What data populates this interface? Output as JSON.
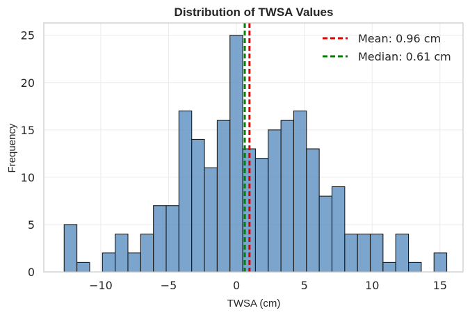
{
  "chart_data": {
    "type": "bar",
    "title": "Distribution of TWSA Values",
    "xlabel": "TWSA (cm)",
    "ylabel": "Frequency",
    "xlim": [
      -14.2,
      16.7
    ],
    "ylim": [
      0,
      26.3
    ],
    "grid": true,
    "legend_position": "top-right",
    "bin_start": -12.7,
    "bin_width": 0.94,
    "values": [
      5,
      1,
      0,
      2,
      4,
      2,
      4,
      7,
      7,
      17,
      14,
      11,
      16,
      25,
      13,
      12,
      15,
      16,
      17,
      13,
      8,
      9,
      4,
      4,
      4,
      1,
      4,
      1,
      0,
      2
    ],
    "x_ticks": [
      -10,
      -5,
      0,
      5,
      10,
      15
    ],
    "x_tick_labels": [
      "−10",
      "−5",
      "0",
      "5",
      "10",
      "15"
    ],
    "y_ticks": [
      0,
      5,
      10,
      15,
      20,
      25
    ],
    "y_tick_labels": [
      "0",
      "5",
      "10",
      "15",
      "20",
      "25"
    ],
    "bar_color": "#5b8ec0",
    "bar_edge_color": "#1a1a1a",
    "reference_lines": [
      {
        "label": "Mean: 0.96 cm",
        "value": 0.96,
        "color": "#e00000"
      },
      {
        "label": "Median: 0.61 cm",
        "value": 0.61,
        "color": "#008000"
      }
    ]
  }
}
